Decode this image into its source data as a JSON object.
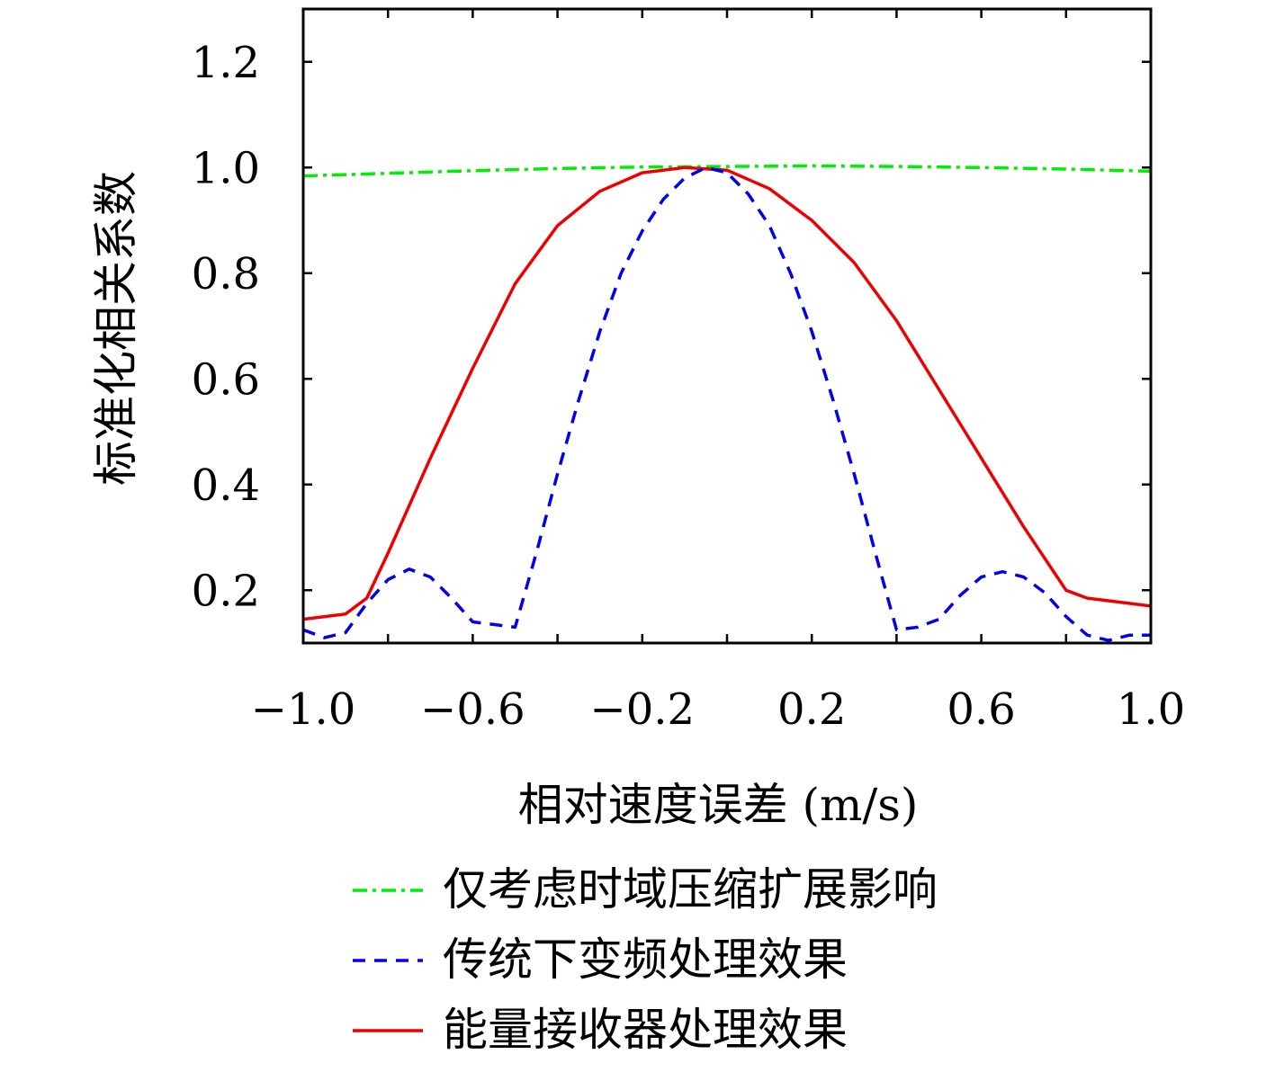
{
  "chart_data": {
    "type": "line",
    "title": "",
    "xlabel": "相对速度误差 (m/s)",
    "ylabel": "标准化相关系数",
    "xlim": [
      -1.0,
      1.0
    ],
    "ylim": [
      0.1,
      1.3
    ],
    "x_ticks": [
      -1.0,
      -0.8,
      -0.6,
      -0.4,
      -0.2,
      0.0,
      0.2,
      0.4,
      0.6,
      0.8,
      1.0
    ],
    "x_tick_labels": [
      "−1.0",
      "",
      "−0.6",
      "",
      "−0.2",
      "",
      "0.2",
      "",
      "0.6",
      "",
      "1.0"
    ],
    "y_ticks": [
      0.2,
      0.4,
      0.6,
      0.8,
      1.0,
      1.2
    ],
    "y_tick_labels": [
      "0.2",
      "0.4",
      "0.6",
      "0.8",
      "1.0",
      "1.2"
    ],
    "grid": false,
    "legend_position": "bottom",
    "series": [
      {
        "name": "仅考虑时域压缩扩展影响",
        "color": "#00ee00",
        "style": "dashdot",
        "x": [
          -1.0,
          -0.8,
          -0.6,
          -0.4,
          -0.2,
          0.0,
          0.2,
          0.4,
          0.6,
          0.8,
          1.0
        ],
        "y": [
          0.984,
          0.989,
          0.994,
          0.998,
          1.001,
          1.002,
          1.003,
          1.002,
          1.0,
          0.997,
          0.993
        ]
      },
      {
        "name": "传统下变频处理效果",
        "color": "#0000ee",
        "style": "dashed",
        "x": [
          -1.0,
          -0.95,
          -0.9,
          -0.85,
          -0.8,
          -0.75,
          -0.7,
          -0.65,
          -0.6,
          -0.55,
          -0.5,
          -0.45,
          -0.4,
          -0.35,
          -0.3,
          -0.25,
          -0.2,
          -0.15,
          -0.1,
          -0.05,
          0.0,
          0.05,
          0.1,
          0.15,
          0.2,
          0.25,
          0.3,
          0.35,
          0.4,
          0.45,
          0.5,
          0.55,
          0.6,
          0.65,
          0.7,
          0.75,
          0.8,
          0.85,
          0.9,
          0.95,
          1.0
        ],
        "y": [
          0.125,
          0.11,
          0.12,
          0.175,
          0.22,
          0.24,
          0.225,
          0.185,
          0.14,
          0.135,
          0.13,
          0.27,
          0.42,
          0.56,
          0.69,
          0.8,
          0.88,
          0.94,
          0.98,
          1.0,
          0.99,
          0.95,
          0.89,
          0.8,
          0.69,
          0.56,
          0.42,
          0.27,
          0.125,
          0.13,
          0.145,
          0.19,
          0.225,
          0.235,
          0.225,
          0.195,
          0.15,
          0.115,
          0.105,
          0.115,
          0.115
        ]
      },
      {
        "name": "能量接收器处理效果",
        "color": "#ee0000",
        "style": "solid",
        "x": [
          -1.0,
          -0.9,
          -0.85,
          -0.8,
          -0.7,
          -0.6,
          -0.5,
          -0.4,
          -0.3,
          -0.2,
          -0.1,
          0.0,
          0.1,
          0.2,
          0.3,
          0.4,
          0.5,
          0.6,
          0.7,
          0.8,
          0.85,
          0.9,
          1.0
        ],
        "y": [
          0.145,
          0.155,
          0.185,
          0.27,
          0.45,
          0.62,
          0.78,
          0.89,
          0.955,
          0.99,
          1.0,
          0.995,
          0.96,
          0.9,
          0.82,
          0.71,
          0.58,
          0.45,
          0.32,
          0.2,
          0.185,
          0.18,
          0.17
        ]
      }
    ]
  }
}
